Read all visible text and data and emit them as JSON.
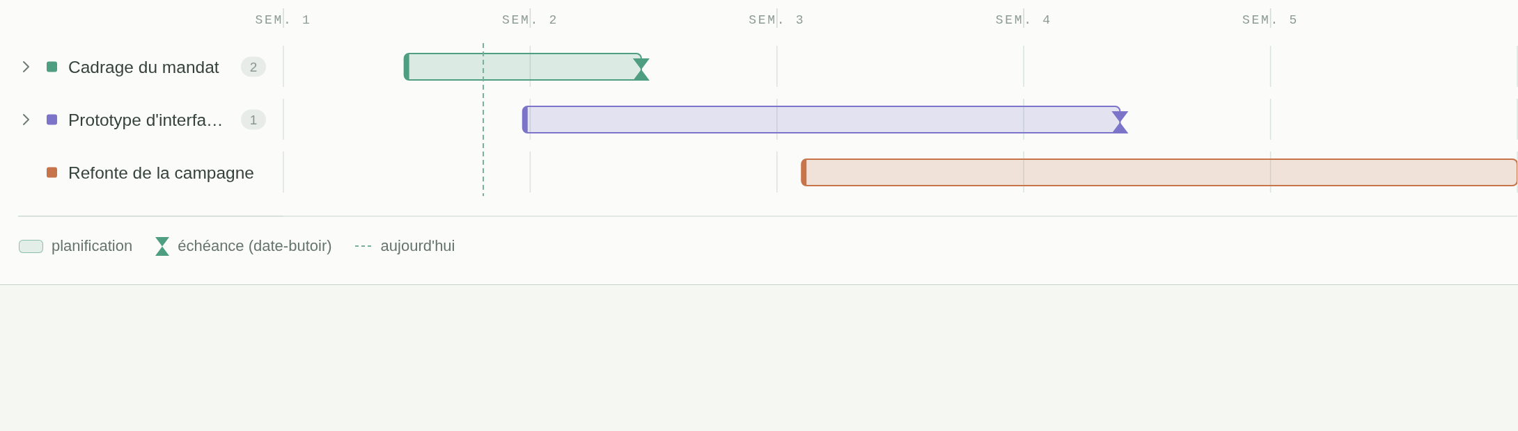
{
  "chart_data": {
    "type": "bar",
    "orientation": "horizontal",
    "categories": [
      "Cadrage du mandat",
      "Prototype d'interfa…",
      "Refonte de la campagne"
    ],
    "series": [
      {
        "name": "planification",
        "values": [
          0.96,
          2.42,
          2.9
        ],
        "base": [
          1.49,
          1.97,
          3.1
        ],
        "colors": [
          "#4e9e82",
          "#7b74c9",
          "#c7744a"
        ]
      },
      {
        "name": "échéance (date-butoir)",
        "type": "scatter",
        "values": [
          2.45,
          4.39,
          null
        ],
        "colors": [
          "#4e9e82",
          "#7b74c9",
          null
        ]
      }
    ],
    "xlim": [
      1,
      6
    ],
    "xticks": [
      {
        "value": 1,
        "label": "SEM. 1"
      },
      {
        "value": 2,
        "label": "SEM. 2"
      },
      {
        "value": 3,
        "label": "SEM. 3"
      },
      {
        "value": 4,
        "label": "SEM. 4"
      },
      {
        "value": 5,
        "label": "SEM. 5"
      }
    ],
    "grid": "x",
    "legend": "bottom",
    "ref_lines": [
      {
        "axis": "x",
        "value": 1.81,
        "label": "aujourd'hui",
        "color": "#76b09a",
        "line_style": "dashed"
      }
    ],
    "annotations": [
      "2",
      "1"
    ]
  }
}
